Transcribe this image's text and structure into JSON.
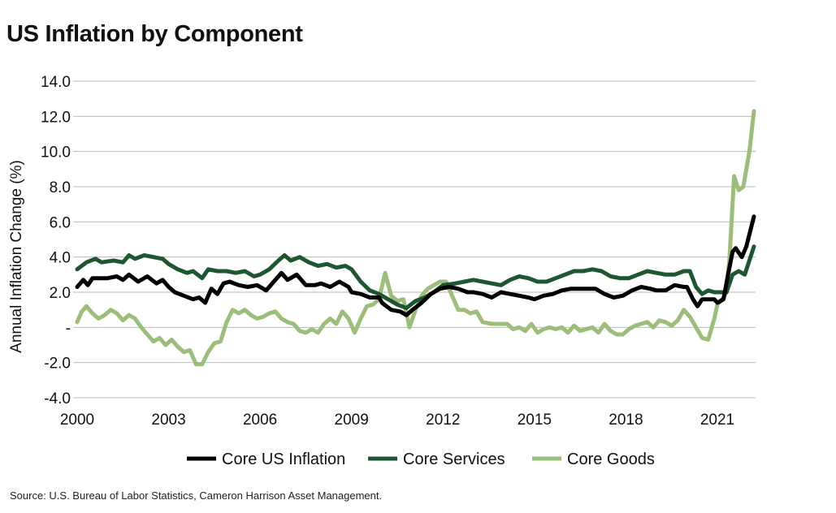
{
  "page": {
    "title": "US Inflation by Component",
    "source": "Source: U.S. Bureau of Labor Statistics, Cameron Harrison Asset Management."
  },
  "chart_data": {
    "type": "line",
    "title": "US Inflation by Component",
    "ylabel": "Annual Inflation Change (%)",
    "xlabel": "",
    "ylim": [
      -4,
      14
    ],
    "xlim": [
      2000,
      2022.2
    ],
    "yticks": [
      -4,
      -2,
      0,
      2,
      4,
      6,
      8,
      10,
      12,
      14
    ],
    "ytick_labels": [
      "-4.0",
      "-2.0",
      "-",
      "2.0",
      "4.0",
      "6.0",
      "8.0",
      "10.0",
      "12.0",
      "14.0"
    ],
    "xticks": [
      2000,
      2003,
      2006,
      2009,
      2012,
      2015,
      2018,
      2021
    ],
    "xtick_labels": [
      "2000",
      "2003",
      "2006",
      "2009",
      "2012",
      "2015",
      "2018",
      "2021"
    ],
    "grid": "horizontal",
    "legend_position": "bottom",
    "series": [
      {
        "name": "Core US Inflation",
        "color": "#000000",
        "points": [
          [
            2000.0,
            2.3
          ],
          [
            2000.2,
            2.7
          ],
          [
            2000.35,
            2.4
          ],
          [
            2000.5,
            2.8
          ],
          [
            2001.0,
            2.8
          ],
          [
            2001.3,
            2.9
          ],
          [
            2001.5,
            2.7
          ],
          [
            2001.7,
            3.0
          ],
          [
            2002.0,
            2.6
          ],
          [
            2002.3,
            2.9
          ],
          [
            2002.6,
            2.5
          ],
          [
            2002.8,
            2.7
          ],
          [
            2003.0,
            2.3
          ],
          [
            2003.2,
            2.0
          ],
          [
            2003.5,
            1.8
          ],
          [
            2003.8,
            1.6
          ],
          [
            2004.0,
            1.7
          ],
          [
            2004.2,
            1.4
          ],
          [
            2004.4,
            2.2
          ],
          [
            2004.6,
            1.9
          ],
          [
            2004.8,
            2.5
          ],
          [
            2005.0,
            2.6
          ],
          [
            2005.3,
            2.4
          ],
          [
            2005.6,
            2.3
          ],
          [
            2005.9,
            2.4
          ],
          [
            2006.2,
            2.1
          ],
          [
            2006.5,
            2.7
          ],
          [
            2006.7,
            3.1
          ],
          [
            2006.9,
            2.7
          ],
          [
            2007.2,
            3.0
          ],
          [
            2007.5,
            2.4
          ],
          [
            2007.8,
            2.4
          ],
          [
            2008.0,
            2.5
          ],
          [
            2008.3,
            2.3
          ],
          [
            2008.6,
            2.6
          ],
          [
            2008.9,
            2.3
          ],
          [
            2009.0,
            2.0
          ],
          [
            2009.3,
            1.9
          ],
          [
            2009.6,
            1.7
          ],
          [
            2009.9,
            1.7
          ],
          [
            2010.0,
            1.4
          ],
          [
            2010.3,
            1.0
          ],
          [
            2010.6,
            0.9
          ],
          [
            2010.8,
            0.7
          ],
          [
            2011.0,
            1.0
          ],
          [
            2011.3,
            1.4
          ],
          [
            2011.6,
            1.9
          ],
          [
            2011.9,
            2.2
          ],
          [
            2012.2,
            2.3
          ],
          [
            2012.5,
            2.2
          ],
          [
            2012.8,
            2.0
          ],
          [
            2013.0,
            2.0
          ],
          [
            2013.3,
            1.9
          ],
          [
            2013.6,
            1.7
          ],
          [
            2013.9,
            2.0
          ],
          [
            2014.2,
            1.9
          ],
          [
            2014.5,
            1.8
          ],
          [
            2014.8,
            1.7
          ],
          [
            2015.0,
            1.6
          ],
          [
            2015.3,
            1.8
          ],
          [
            2015.6,
            1.9
          ],
          [
            2015.9,
            2.1
          ],
          [
            2016.2,
            2.2
          ],
          [
            2016.5,
            2.2
          ],
          [
            2016.8,
            2.2
          ],
          [
            2017.0,
            2.2
          ],
          [
            2017.3,
            1.9
          ],
          [
            2017.6,
            1.7
          ],
          [
            2017.9,
            1.8
          ],
          [
            2018.2,
            2.1
          ],
          [
            2018.5,
            2.3
          ],
          [
            2018.8,
            2.2
          ],
          [
            2019.0,
            2.1
          ],
          [
            2019.3,
            2.1
          ],
          [
            2019.6,
            2.4
          ],
          [
            2019.9,
            2.3
          ],
          [
            2020.0,
            2.3
          ],
          [
            2020.2,
            1.6
          ],
          [
            2020.35,
            1.2
          ],
          [
            2020.5,
            1.6
          ],
          [
            2020.7,
            1.6
          ],
          [
            2020.9,
            1.6
          ],
          [
            2021.0,
            1.4
          ],
          [
            2021.2,
            1.6
          ],
          [
            2021.35,
            3.0
          ],
          [
            2021.5,
            4.3
          ],
          [
            2021.6,
            4.5
          ],
          [
            2021.8,
            4.0
          ],
          [
            2021.95,
            4.6
          ],
          [
            2022.2,
            6.3
          ]
        ]
      },
      {
        "name": "Core Services",
        "color": "#1e5631",
        "points": [
          [
            2000.0,
            3.3
          ],
          [
            2000.3,
            3.7
          ],
          [
            2000.6,
            3.9
          ],
          [
            2000.8,
            3.7
          ],
          [
            2001.2,
            3.8
          ],
          [
            2001.5,
            3.7
          ],
          [
            2001.7,
            4.1
          ],
          [
            2001.9,
            3.9
          ],
          [
            2002.2,
            4.1
          ],
          [
            2002.5,
            4.0
          ],
          [
            2002.8,
            3.9
          ],
          [
            2003.0,
            3.6
          ],
          [
            2003.3,
            3.3
          ],
          [
            2003.6,
            3.1
          ],
          [
            2003.8,
            3.2
          ],
          [
            2004.1,
            2.8
          ],
          [
            2004.3,
            3.3
          ],
          [
            2004.6,
            3.2
          ],
          [
            2004.9,
            3.2
          ],
          [
            2005.2,
            3.1
          ],
          [
            2005.5,
            3.2
          ],
          [
            2005.8,
            2.9
          ],
          [
            2006.0,
            3.0
          ],
          [
            2006.3,
            3.3
          ],
          [
            2006.6,
            3.8
          ],
          [
            2006.8,
            4.1
          ],
          [
            2007.0,
            3.8
          ],
          [
            2007.3,
            4.0
          ],
          [
            2007.6,
            3.7
          ],
          [
            2007.9,
            3.5
          ],
          [
            2008.2,
            3.6
          ],
          [
            2008.5,
            3.4
          ],
          [
            2008.8,
            3.5
          ],
          [
            2009.0,
            3.3
          ],
          [
            2009.3,
            2.6
          ],
          [
            2009.6,
            2.1
          ],
          [
            2009.9,
            1.9
          ],
          [
            2010.2,
            1.6
          ],
          [
            2010.5,
            1.3
          ],
          [
            2010.8,
            1.1
          ],
          [
            2011.1,
            1.5
          ],
          [
            2011.4,
            1.7
          ],
          [
            2011.7,
            2.0
          ],
          [
            2012.0,
            2.4
          ],
          [
            2012.4,
            2.5
          ],
          [
            2012.7,
            2.6
          ],
          [
            2013.0,
            2.7
          ],
          [
            2013.3,
            2.6
          ],
          [
            2013.6,
            2.5
          ],
          [
            2013.9,
            2.4
          ],
          [
            2014.2,
            2.7
          ],
          [
            2014.5,
            2.9
          ],
          [
            2014.8,
            2.8
          ],
          [
            2015.1,
            2.6
          ],
          [
            2015.4,
            2.6
          ],
          [
            2015.7,
            2.8
          ],
          [
            2016.0,
            3.0
          ],
          [
            2016.3,
            3.2
          ],
          [
            2016.6,
            3.2
          ],
          [
            2016.9,
            3.3
          ],
          [
            2017.2,
            3.2
          ],
          [
            2017.5,
            2.9
          ],
          [
            2017.8,
            2.8
          ],
          [
            2018.1,
            2.8
          ],
          [
            2018.4,
            3.0
          ],
          [
            2018.7,
            3.2
          ],
          [
            2019.0,
            3.1
          ],
          [
            2019.3,
            3.0
          ],
          [
            2019.6,
            3.0
          ],
          [
            2019.9,
            3.2
          ],
          [
            2020.1,
            3.2
          ],
          [
            2020.3,
            2.3
          ],
          [
            2020.5,
            1.9
          ],
          [
            2020.7,
            2.1
          ],
          [
            2020.9,
            2.0
          ],
          [
            2021.1,
            2.0
          ],
          [
            2021.3,
            2.0
          ],
          [
            2021.5,
            3.0
          ],
          [
            2021.7,
            3.2
          ],
          [
            2021.9,
            3.0
          ],
          [
            2022.2,
            4.6
          ]
        ]
      },
      {
        "name": "Core Goods",
        "color": "#9dbe7b",
        "points": [
          [
            2000.0,
            0.3
          ],
          [
            2000.15,
            0.9
          ],
          [
            2000.3,
            1.2
          ],
          [
            2000.5,
            0.8
          ],
          [
            2000.7,
            0.5
          ],
          [
            2000.9,
            0.7
          ],
          [
            2001.1,
            1.0
          ],
          [
            2001.3,
            0.8
          ],
          [
            2001.5,
            0.4
          ],
          [
            2001.7,
            0.7
          ],
          [
            2001.9,
            0.5
          ],
          [
            2002.1,
            0.0
          ],
          [
            2002.3,
            -0.4
          ],
          [
            2002.5,
            -0.8
          ],
          [
            2002.7,
            -0.6
          ],
          [
            2002.9,
            -1.0
          ],
          [
            2003.1,
            -0.7
          ],
          [
            2003.3,
            -1.1
          ],
          [
            2003.5,
            -1.4
          ],
          [
            2003.7,
            -1.3
          ],
          [
            2003.9,
            -2.1
          ],
          [
            2004.1,
            -2.1
          ],
          [
            2004.3,
            -1.4
          ],
          [
            2004.5,
            -0.9
          ],
          [
            2004.7,
            -0.8
          ],
          [
            2004.9,
            0.3
          ],
          [
            2005.1,
            1.0
          ],
          [
            2005.3,
            0.8
          ],
          [
            2005.5,
            1.0
          ],
          [
            2005.7,
            0.7
          ],
          [
            2005.9,
            0.5
          ],
          [
            2006.1,
            0.6
          ],
          [
            2006.3,
            0.8
          ],
          [
            2006.5,
            0.9
          ],
          [
            2006.7,
            0.5
          ],
          [
            2006.9,
            0.3
          ],
          [
            2007.1,
            0.2
          ],
          [
            2007.3,
            -0.2
          ],
          [
            2007.5,
            -0.3
          ],
          [
            2007.7,
            -0.1
          ],
          [
            2007.9,
            -0.3
          ],
          [
            2008.1,
            0.2
          ],
          [
            2008.3,
            0.5
          ],
          [
            2008.5,
            0.2
          ],
          [
            2008.7,
            0.9
          ],
          [
            2008.9,
            0.5
          ],
          [
            2009.1,
            -0.3
          ],
          [
            2009.3,
            0.5
          ],
          [
            2009.5,
            1.2
          ],
          [
            2009.7,
            1.3
          ],
          [
            2009.9,
            1.6
          ],
          [
            2010.1,
            3.1
          ],
          [
            2010.3,
            1.8
          ],
          [
            2010.5,
            1.5
          ],
          [
            2010.7,
            1.6
          ],
          [
            2010.9,
            0.0
          ],
          [
            2011.1,
            1.0
          ],
          [
            2011.3,
            1.8
          ],
          [
            2011.5,
            2.2
          ],
          [
            2011.7,
            2.4
          ],
          [
            2011.9,
            2.6
          ],
          [
            2012.1,
            2.6
          ],
          [
            2012.3,
            1.8
          ],
          [
            2012.5,
            1.0
          ],
          [
            2012.7,
            1.0
          ],
          [
            2012.9,
            0.8
          ],
          [
            2013.1,
            0.9
          ],
          [
            2013.3,
            0.3
          ],
          [
            2013.6,
            0.2
          ],
          [
            2013.9,
            0.2
          ],
          [
            2014.1,
            0.2
          ],
          [
            2014.3,
            -0.1
          ],
          [
            2014.5,
            0.0
          ],
          [
            2014.7,
            -0.2
          ],
          [
            2014.9,
            0.2
          ],
          [
            2015.1,
            -0.3
          ],
          [
            2015.3,
            -0.1
          ],
          [
            2015.5,
            0.0
          ],
          [
            2015.7,
            -0.1
          ],
          [
            2015.9,
            0.0
          ],
          [
            2016.1,
            -0.3
          ],
          [
            2016.3,
            0.1
          ],
          [
            2016.5,
            -0.2
          ],
          [
            2016.7,
            -0.1
          ],
          [
            2016.9,
            0.0
          ],
          [
            2017.1,
            -0.3
          ],
          [
            2017.3,
            0.2
          ],
          [
            2017.5,
            -0.2
          ],
          [
            2017.7,
            -0.4
          ],
          [
            2017.9,
            -0.4
          ],
          [
            2018.1,
            -0.1
          ],
          [
            2018.3,
            0.1
          ],
          [
            2018.5,
            0.2
          ],
          [
            2018.7,
            0.3
          ],
          [
            2018.9,
            0.0
          ],
          [
            2019.1,
            0.4
          ],
          [
            2019.3,
            0.3
          ],
          [
            2019.5,
            0.1
          ],
          [
            2019.7,
            0.4
          ],
          [
            2019.9,
            1.0
          ],
          [
            2020.1,
            0.6
          ],
          [
            2020.3,
            0.0
          ],
          [
            2020.5,
            -0.6
          ],
          [
            2020.7,
            -0.7
          ],
          [
            2020.9,
            0.5
          ],
          [
            2021.0,
            1.3
          ],
          [
            2021.2,
            1.7
          ],
          [
            2021.3,
            2.0
          ],
          [
            2021.4,
            4.0
          ],
          [
            2021.55,
            8.6
          ],
          [
            2021.7,
            7.8
          ],
          [
            2021.85,
            8.0
          ],
          [
            2022.05,
            10.0
          ],
          [
            2022.2,
            12.3
          ]
        ]
      }
    ]
  }
}
